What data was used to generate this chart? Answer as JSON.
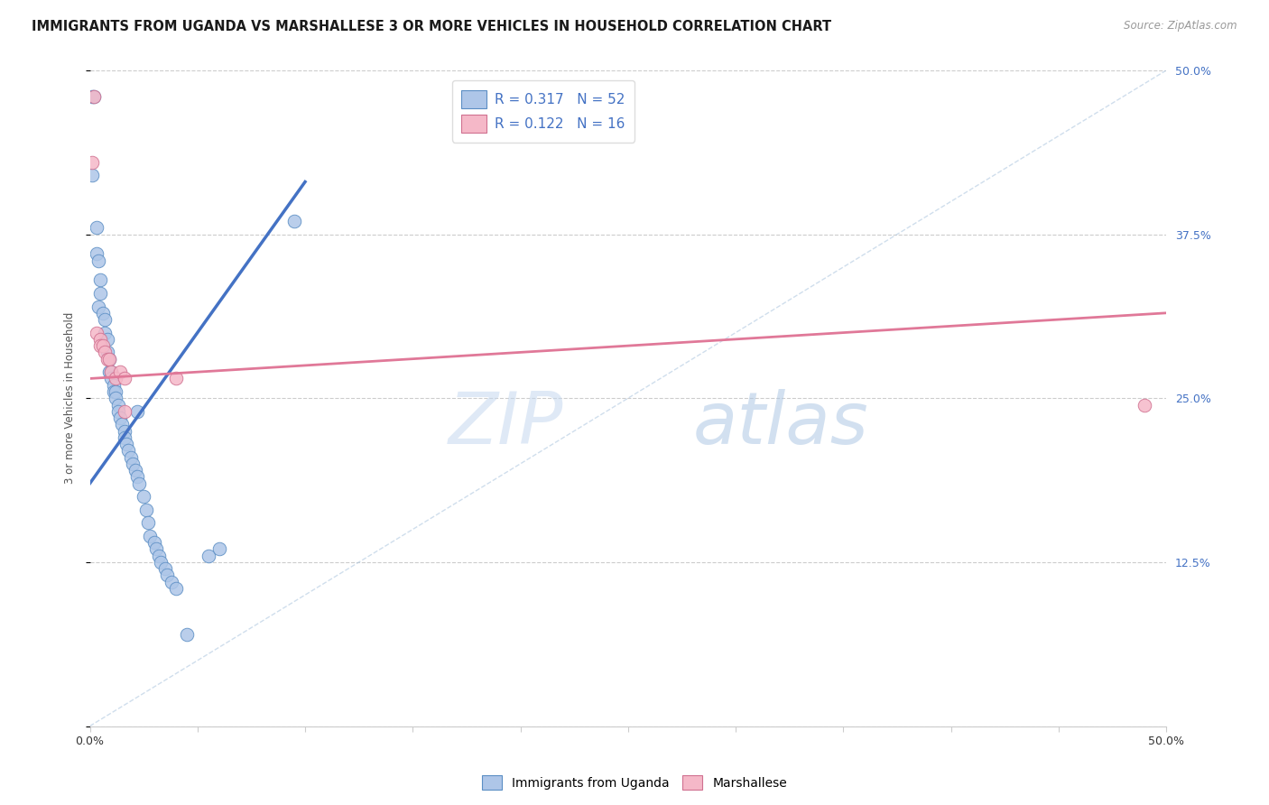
{
  "title": "IMMIGRANTS FROM UGANDA VS MARSHALLESE 3 OR MORE VEHICLES IN HOUSEHOLD CORRELATION CHART",
  "source": "Source: ZipAtlas.com",
  "ylabel": "3 or more Vehicles in Household",
  "xlim": [
    0.0,
    0.5
  ],
  "ylim": [
    0.0,
    0.5
  ],
  "xtick_labels": [
    "0.0%",
    "",
    "",
    "",
    "",
    "",
    "",
    "",
    "",
    "",
    "50.0%"
  ],
  "xtick_vals": [
    0.0,
    0.05,
    0.1,
    0.15,
    0.2,
    0.25,
    0.3,
    0.35,
    0.4,
    0.45,
    0.5
  ],
  "ytick_vals_right": [
    0.0,
    0.125,
    0.25,
    0.375,
    0.5
  ],
  "ytick_labels_right": [
    "",
    "12.5%",
    "25.0%",
    "37.5%",
    "50.0%"
  ],
  "grid_color": "#cccccc",
  "background_color": "#ffffff",
  "watermark_zip": "ZIP",
  "watermark_atlas": "atlas",
  "color_blue": "#aec6e8",
  "color_pink": "#f5b8c8",
  "edge_blue": "#5b8ec4",
  "edge_pink": "#d07090",
  "line_blue": "#4472c4",
  "line_pink": "#e07898",
  "dashed_color": "#b0c8e0",
  "legend_labels": [
    "Immigrants from Uganda",
    "Marshallese"
  ],
  "legend_R1": "R = 0.317",
  "legend_N1": "N = 52",
  "legend_R2": "R = 0.122",
  "legend_N2": "N = 16",
  "blue_trend": [
    0.0,
    0.185,
    0.1,
    0.415
  ],
  "pink_trend": [
    0.0,
    0.265,
    0.5,
    0.315
  ],
  "dashed_trend": [
    0.0,
    0.0,
    0.5,
    0.5
  ],
  "scatter_blue": [
    [
      0.001,
      0.48
    ],
    [
      0.002,
      0.48
    ],
    [
      0.001,
      0.42
    ],
    [
      0.003,
      0.38
    ],
    [
      0.003,
      0.36
    ],
    [
      0.004,
      0.355
    ],
    [
      0.005,
      0.34
    ],
    [
      0.005,
      0.33
    ],
    [
      0.004,
      0.32
    ],
    [
      0.006,
      0.315
    ],
    [
      0.007,
      0.31
    ],
    [
      0.007,
      0.3
    ],
    [
      0.008,
      0.295
    ],
    [
      0.008,
      0.285
    ],
    [
      0.009,
      0.28
    ],
    [
      0.009,
      0.27
    ],
    [
      0.01,
      0.27
    ],
    [
      0.01,
      0.265
    ],
    [
      0.011,
      0.26
    ],
    [
      0.011,
      0.255
    ],
    [
      0.012,
      0.255
    ],
    [
      0.012,
      0.25
    ],
    [
      0.013,
      0.245
    ],
    [
      0.013,
      0.24
    ],
    [
      0.014,
      0.235
    ],
    [
      0.015,
      0.23
    ],
    [
      0.016,
      0.225
    ],
    [
      0.016,
      0.22
    ],
    [
      0.017,
      0.215
    ],
    [
      0.018,
      0.21
    ],
    [
      0.019,
      0.205
    ],
    [
      0.02,
      0.2
    ],
    [
      0.021,
      0.195
    ],
    [
      0.022,
      0.19
    ],
    [
      0.023,
      0.185
    ],
    [
      0.025,
      0.175
    ],
    [
      0.026,
      0.165
    ],
    [
      0.027,
      0.155
    ],
    [
      0.028,
      0.145
    ],
    [
      0.03,
      0.14
    ],
    [
      0.031,
      0.135
    ],
    [
      0.032,
      0.13
    ],
    [
      0.033,
      0.125
    ],
    [
      0.035,
      0.12
    ],
    [
      0.036,
      0.115
    ],
    [
      0.038,
      0.11
    ],
    [
      0.04,
      0.105
    ],
    [
      0.022,
      0.24
    ],
    [
      0.045,
      0.07
    ],
    [
      0.055,
      0.13
    ],
    [
      0.06,
      0.135
    ],
    [
      0.095,
      0.385
    ]
  ],
  "scatter_pink": [
    [
      0.002,
      0.48
    ],
    [
      0.001,
      0.43
    ],
    [
      0.003,
      0.3
    ],
    [
      0.005,
      0.295
    ],
    [
      0.005,
      0.29
    ],
    [
      0.006,
      0.29
    ],
    [
      0.007,
      0.285
    ],
    [
      0.008,
      0.28
    ],
    [
      0.009,
      0.28
    ],
    [
      0.01,
      0.27
    ],
    [
      0.012,
      0.265
    ],
    [
      0.014,
      0.27
    ],
    [
      0.016,
      0.265
    ],
    [
      0.016,
      0.24
    ],
    [
      0.04,
      0.265
    ],
    [
      0.49,
      0.245
    ]
  ]
}
